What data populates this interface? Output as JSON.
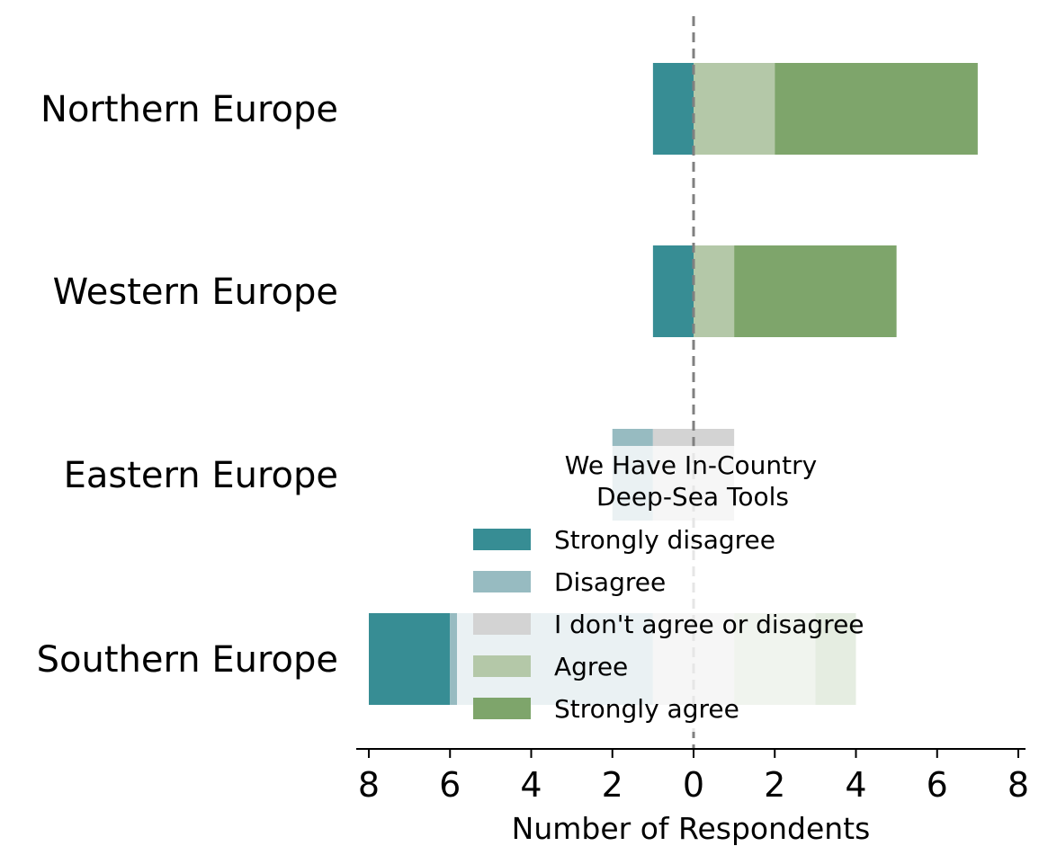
{
  "chart_data": {
    "type": "bar",
    "orientation": "horizontal-diverging",
    "categories": [
      "Northern Europe",
      "Western Europe",
      "Eastern Europe",
      "Southern Europe"
    ],
    "series": [
      {
        "name": "Strongly disagree",
        "color": "#378d94",
        "values": [
          1,
          1,
          0,
          2
        ]
      },
      {
        "name": "Disagree",
        "color": "#97bbc1",
        "values": [
          0,
          0,
          1,
          5
        ]
      },
      {
        "name": "I don't agree or disagree",
        "color": "#d3d3d3",
        "values": [
          0,
          0,
          2,
          2
        ]
      },
      {
        "name": "Agree",
        "color": "#b4c8a8",
        "values": [
          2,
          1,
          0,
          2
        ]
      },
      {
        "name": "Strongly agree",
        "color": "#7ea56b",
        "values": [
          5,
          4,
          0,
          1
        ]
      }
    ],
    "xlabel": "Number of Respondents",
    "xlim": [
      -8,
      8
    ],
    "xticks": [
      -8,
      -6,
      -4,
      -2,
      0,
      2,
      4,
      6,
      8
    ],
    "xtick_labels": [
      "8",
      "6",
      "4",
      "2",
      "0",
      "2",
      "4",
      "6",
      "8"
    ],
    "zero_line": "dashed",
    "grid": false,
    "legend": {
      "title": "We Have In-Country\nDeep-Sea Tools",
      "position": "center-bottom"
    }
  }
}
